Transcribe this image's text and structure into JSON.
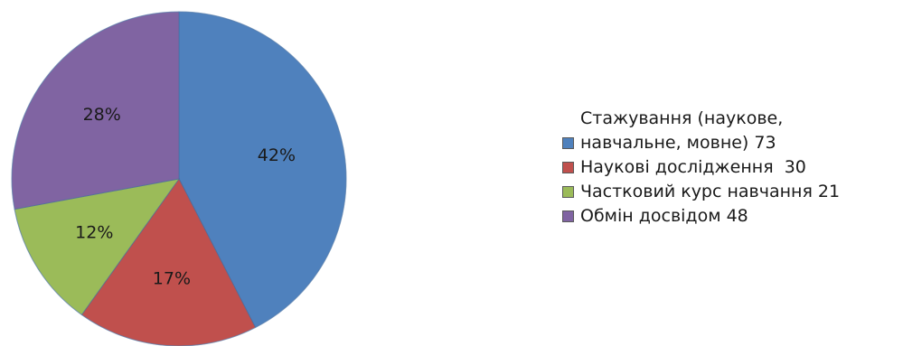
{
  "chart_data": {
    "type": "pie",
    "title": "",
    "slices": [
      {
        "label": "Стажування (наукове, навчальне, мовне) 73",
        "value": 73,
        "percent_label": "42%",
        "color": "#4F81BD"
      },
      {
        "label": "Наукові дослідження  30",
        "value": 30,
        "percent_label": "17%",
        "color": "#C0504D"
      },
      {
        "label": "Частковий курс навчання 21",
        "value": 21,
        "percent_label": "12%",
        "color": "#9BBB59"
      },
      {
        "label": "Обмін досвідом 48",
        "value": 48,
        "percent_label": "28%",
        "color": "#8064A2"
      }
    ],
    "start_angle": "12 o'clock",
    "direction": "clockwise",
    "legend_position": "right"
  }
}
